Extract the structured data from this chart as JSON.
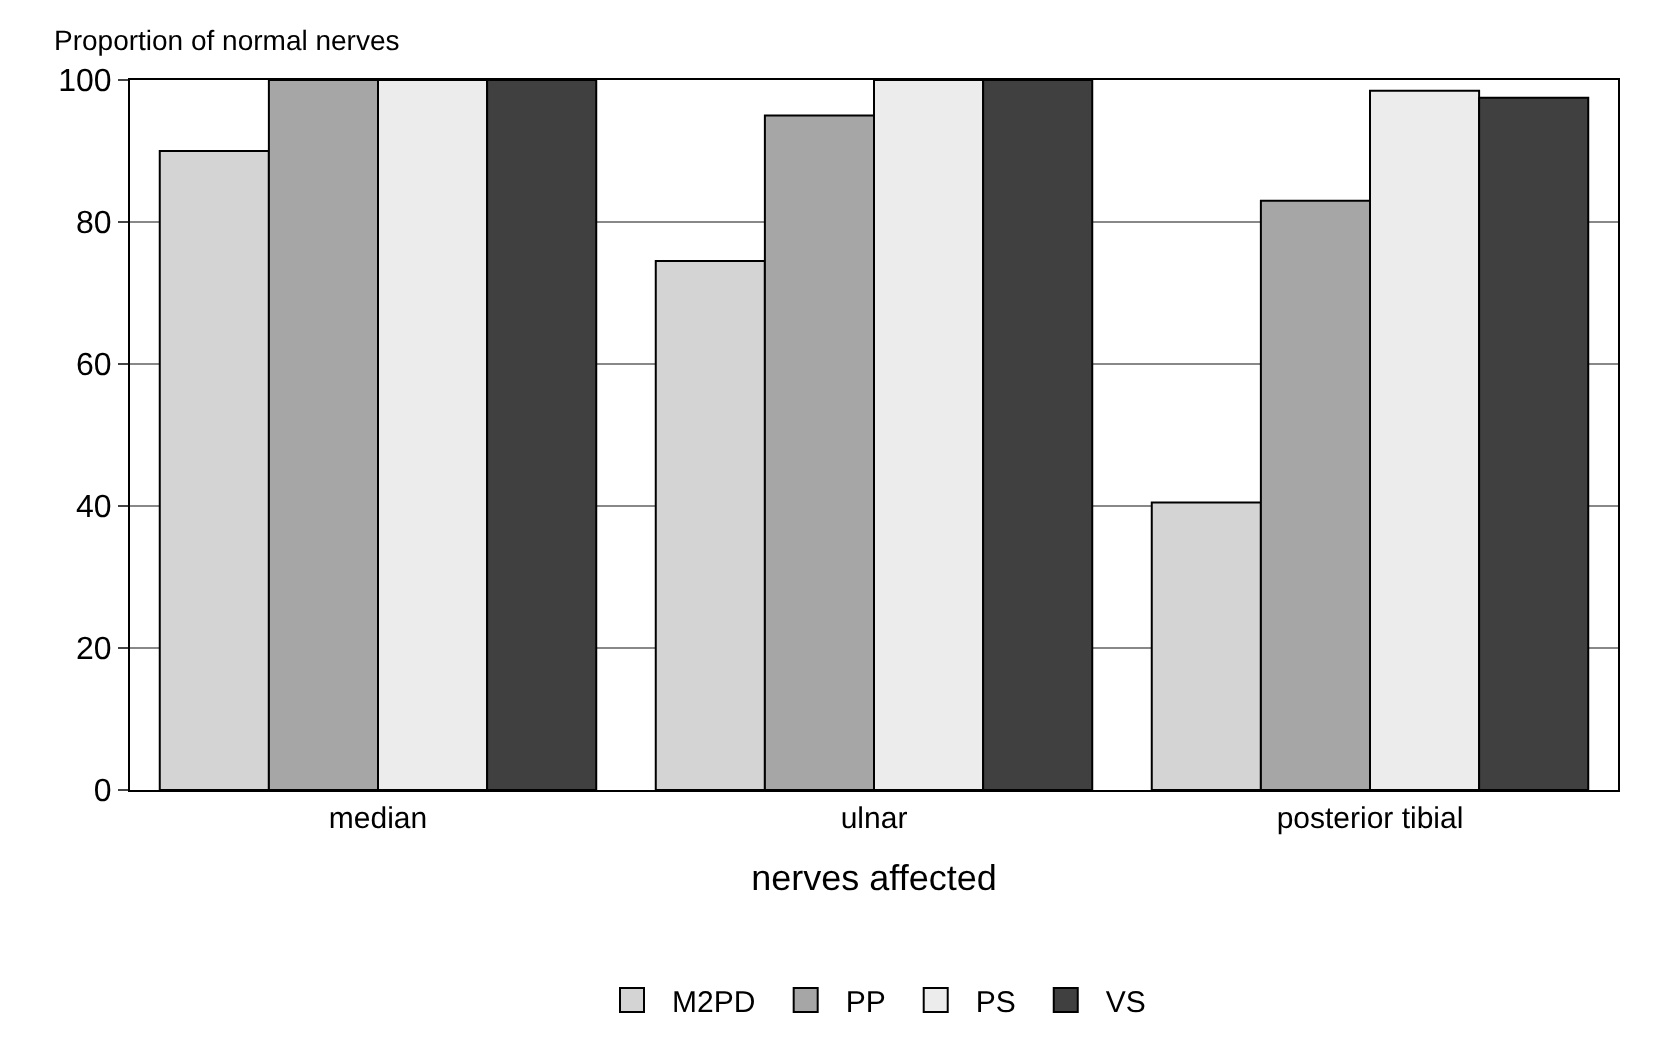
{
  "chart_data": {
    "type": "bar",
    "ylabel": "Proportion of normal nerves",
    "xlabel": "nerves affected",
    "categories": [
      "median",
      "ulnar",
      "posterior tibial"
    ],
    "series": [
      {
        "name": "M2PD",
        "color": "#d4d4d4",
        "values": [
          90,
          74.5,
          40.5
        ]
      },
      {
        "name": "PP",
        "color": "#a6a6a6",
        "values": [
          100,
          95,
          83
        ]
      },
      {
        "name": "PS",
        "color": "#ececec",
        "values": [
          100,
          100,
          98.5
        ]
      },
      {
        "name": "VS",
        "color": "#404040",
        "values": [
          100,
          100,
          97.5
        ]
      }
    ],
    "ylim": [
      0,
      100
    ],
    "yticks": [
      0,
      20,
      40,
      60,
      80,
      100
    ],
    "grid": "y",
    "legend": "bottom"
  }
}
